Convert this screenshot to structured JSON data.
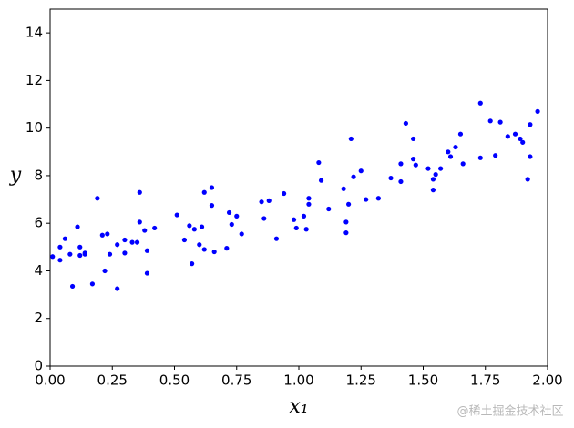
{
  "chart_data": {
    "type": "scatter",
    "xlabel": "x₁",
    "ylabel": "y",
    "watermark": "@稀土掘金技术社区",
    "xlim": [
      0,
      2
    ],
    "ylim": [
      0,
      15
    ],
    "xticks": [
      {
        "value": 0,
        "label": "0.00"
      },
      {
        "value": 0.25,
        "label": "0.25"
      },
      {
        "value": 0.5,
        "label": "0.50"
      },
      {
        "value": 0.75,
        "label": "0.75"
      },
      {
        "value": 1,
        "label": "1.00"
      },
      {
        "value": 1.25,
        "label": "1.25"
      },
      {
        "value": 1.5,
        "label": "1.50"
      },
      {
        "value": 1.75,
        "label": "1.75"
      },
      {
        "value": 2,
        "label": "2.00"
      }
    ],
    "yticks": [
      0,
      2,
      4,
      6,
      8,
      10,
      12,
      14
    ],
    "grid": false,
    "series": [
      {
        "color": "#0000ff",
        "x": [
          0.01,
          0.04,
          0.04,
          0.06,
          0.08,
          0.09,
          0.11,
          0.12,
          0.12,
          0.14,
          0.14,
          0.17,
          0.19,
          0.21,
          0.22,
          0.23,
          0.24,
          0.27,
          0.27,
          0.3,
          0.3,
          0.33,
          0.35,
          0.36,
          0.36,
          0.38,
          0.39,
          0.39,
          0.42,
          0.51,
          0.54,
          0.56,
          0.57,
          0.58,
          0.6,
          0.61,
          0.62,
          0.62,
          0.65,
          0.65,
          0.66,
          0.71,
          0.72,
          0.73,
          0.75,
          0.77,
          0.85,
          0.86,
          0.88,
          0.91,
          0.94,
          0.98,
          0.99,
          1.02,
          1.03,
          1.04,
          1.04,
          1.08,
          1.09,
          1.12,
          1.18,
          1.19,
          1.19,
          1.2,
          1.21,
          1.22,
          1.25,
          1.27,
          1.32,
          1.37,
          1.41,
          1.41,
          1.43,
          1.46,
          1.46,
          1.47,
          1.52,
          1.54,
          1.54,
          1.55,
          1.57,
          1.6,
          1.61,
          1.63,
          1.65,
          1.66,
          1.73,
          1.73,
          1.77,
          1.79,
          1.81,
          1.84,
          1.87,
          1.89,
          1.9,
          1.92,
          1.93,
          1.93,
          1.96
        ],
        "values": [
          4.6,
          5.0,
          4.45,
          5.35,
          4.7,
          3.35,
          5.85,
          5.0,
          4.65,
          4.7,
          4.75,
          3.45,
          7.05,
          5.5,
          4.0,
          5.55,
          4.7,
          5.1,
          3.25,
          5.3,
          4.75,
          5.2,
          5.2,
          7.3,
          6.05,
          5.7,
          4.85,
          3.9,
          5.8,
          6.35,
          5.3,
          5.9,
          4.3,
          5.75,
          5.1,
          5.85,
          7.3,
          4.9,
          7.5,
          6.75,
          4.8,
          4.95,
          6.45,
          5.95,
          6.3,
          5.55,
          6.9,
          6.2,
          6.95,
          5.35,
          7.25,
          6.15,
          5.8,
          6.3,
          5.75,
          7.05,
          6.8,
          8.55,
          7.8,
          6.6,
          7.45,
          6.05,
          5.6,
          6.8,
          9.55,
          7.95,
          8.2,
          7.0,
          7.05,
          7.9,
          8.5,
          7.75,
          10.2,
          9.55,
          8.7,
          8.45,
          8.3,
          7.4,
          7.85,
          8.05,
          8.3,
          9.0,
          8.8,
          9.2,
          9.75,
          8.5,
          11.05,
          8.75,
          10.3,
          8.85,
          10.25,
          9.65,
          9.75,
          9.55,
          9.4,
          7.85,
          10.15,
          8.8,
          10.7
        ]
      }
    ]
  }
}
